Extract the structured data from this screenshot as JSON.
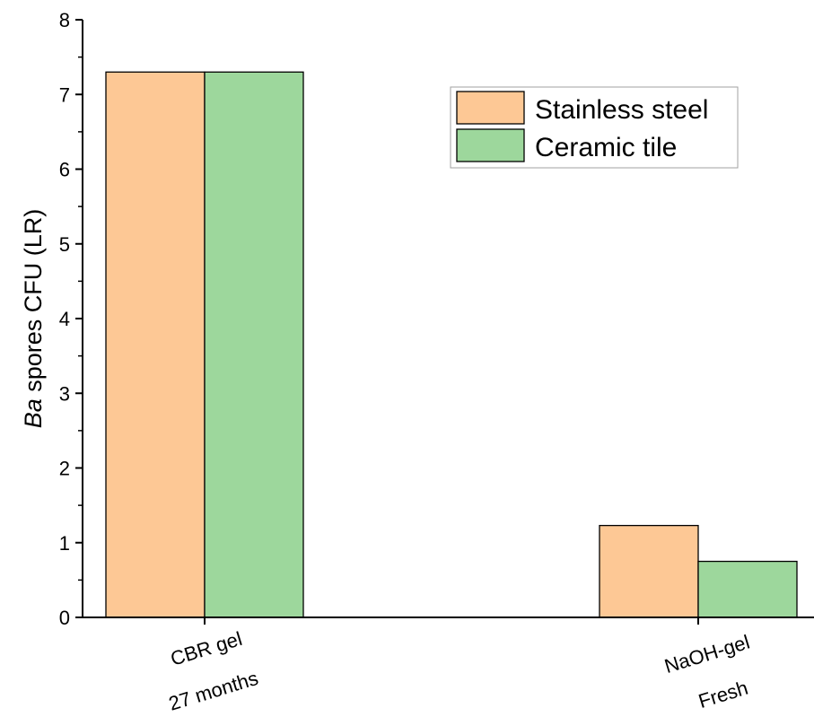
{
  "chart_data": {
    "type": "bar",
    "categories": [
      [
        "CBR gel",
        "27 months"
      ],
      [
        "NaOH-gel",
        "Fresh"
      ]
    ],
    "series": [
      {
        "name": "Stainless steel",
        "values": [
          7.3,
          1.23
        ],
        "color": "#FDC895"
      },
      {
        "name": "Ceramic tile",
        "values": [
          7.3,
          0.75
        ],
        "color": "#9DD79C"
      }
    ],
    "title": "",
    "xlabel": "",
    "ylabel": {
      "italic_part": "Ba",
      "rest": " spores CFU (LR)"
    },
    "ylim": [
      0,
      8
    ],
    "yticks": [
      "0",
      "1",
      "2",
      "3",
      "4",
      "5",
      "6",
      "7",
      "8"
    ],
    "grid": false,
    "legend_position": "top-right",
    "axis_color": "#000000"
  }
}
